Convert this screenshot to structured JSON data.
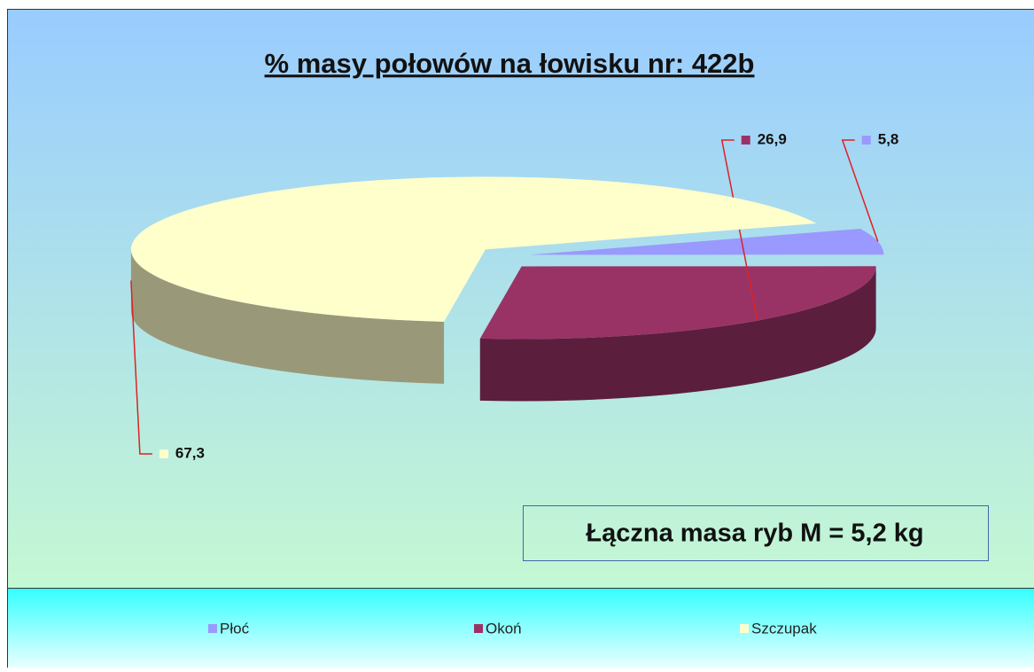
{
  "chart_data": {
    "type": "pie",
    "title": "% masy połowów na łowisku nr:  422b",
    "categories": [
      "Płoć",
      "Okoń",
      "Szczupak"
    ],
    "values": [
      5.8,
      26.9,
      67.3
    ],
    "value_labels": [
      "5,8",
      "26,9",
      "67,3"
    ],
    "colors": [
      "#9999ff",
      "#993366",
      "#ffffcc"
    ],
    "annotation": "Łączna masa ryb M = 5,2 kg",
    "legend": "bottom"
  }
}
